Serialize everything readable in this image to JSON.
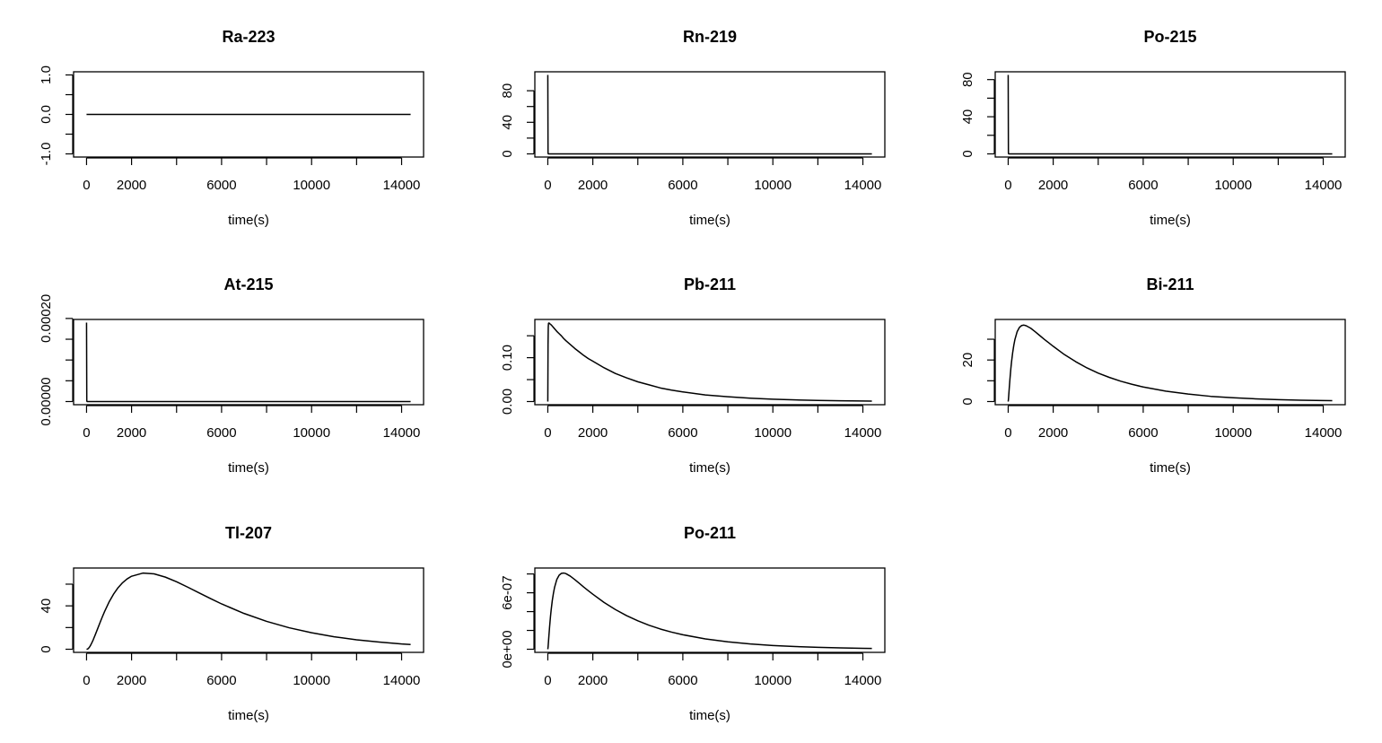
{
  "figure": {
    "x_values": [
      0,
      10,
      20,
      30,
      40,
      50,
      60,
      80,
      100,
      120,
      150,
      200,
      250,
      300,
      400,
      500,
      600,
      700,
      800,
      1000,
      1200,
      1400,
      1600,
      1800,
      2000,
      2500,
      3000,
      3500,
      4000,
      4500,
      5000,
      5500,
      6000,
      7000,
      8000,
      9000,
      10000,
      11000,
      12000,
      13000,
      14000,
      14400
    ],
    "ink_color": "#000000",
    "background_color": "#ffffff"
  },
  "chart_data": [
    {
      "type": "line",
      "title": "Ra-223",
      "xlabel": "time(s)",
      "ylabel": "",
      "xlim": [
        0,
        14400
      ],
      "ylim": [
        -1,
        1
      ],
      "x_ticks": [
        0,
        2000,
        4000,
        6000,
        8000,
        10000,
        12000,
        14000
      ],
      "x_tick_labels": [
        "0",
        "2000",
        "",
        "6000",
        "",
        "10000",
        "",
        "14000"
      ],
      "y_ticks": [
        -1.0,
        -0.5,
        0.0,
        0.5,
        1.0
      ],
      "y_tick_labels": [
        "-1.0",
        "",
        "0.0",
        "",
        "1.0"
      ],
      "grid": false,
      "series": [
        {
          "values": [
            0,
            0,
            0,
            0,
            0,
            0,
            0,
            0,
            0,
            0,
            0,
            0,
            0,
            0,
            0,
            0,
            0,
            0,
            0,
            0,
            0,
            0,
            0,
            0,
            0,
            0,
            0,
            0,
            0,
            0,
            0,
            0,
            0,
            0,
            0,
            0,
            0,
            0,
            0,
            0,
            0,
            0
          ]
        }
      ]
    },
    {
      "type": "line",
      "title": "Rn-219",
      "xlabel": "time(s)",
      "ylabel": "",
      "xlim": [
        0,
        14400
      ],
      "ylim": [
        0,
        100
      ],
      "x_ticks": [
        0,
        2000,
        4000,
        6000,
        8000,
        10000,
        12000,
        14000
      ],
      "x_tick_labels": [
        "0",
        "2000",
        "",
        "6000",
        "",
        "10000",
        "",
        "14000"
      ],
      "y_ticks": [
        0,
        20,
        40,
        60,
        80
      ],
      "y_tick_labels": [
        "0",
        "",
        "40",
        "",
        "80"
      ],
      "grid": false,
      "series": [
        {
          "values": [
            100,
            1,
            0,
            0,
            0,
            0,
            0,
            0,
            0,
            0,
            0,
            0,
            0,
            0,
            0,
            0,
            0,
            0,
            0,
            0,
            0,
            0,
            0,
            0,
            0,
            0,
            0,
            0,
            0,
            0,
            0,
            0,
            0,
            0,
            0,
            0,
            0,
            0,
            0,
            0,
            0,
            0
          ]
        }
      ]
    },
    {
      "type": "line",
      "title": "Po-215",
      "xlabel": "time(s)",
      "ylabel": "",
      "xlim": [
        0,
        14400
      ],
      "ylim": [
        0,
        85
      ],
      "x_ticks": [
        0,
        2000,
        4000,
        6000,
        8000,
        10000,
        12000,
        14000
      ],
      "x_tick_labels": [
        "0",
        "2000",
        "",
        "6000",
        "",
        "10000",
        "",
        "14000"
      ],
      "y_ticks": [
        0,
        20,
        40,
        60,
        80
      ],
      "y_tick_labels": [
        "0",
        "",
        "40",
        "",
        "80"
      ],
      "grid": false,
      "series": [
        {
          "values": [
            85,
            1,
            0,
            0,
            0,
            0,
            0,
            0,
            0,
            0,
            0,
            0,
            0,
            0,
            0,
            0,
            0,
            0,
            0,
            0,
            0,
            0,
            0,
            0,
            0,
            0,
            0,
            0,
            0,
            0,
            0,
            0,
            0,
            0,
            0,
            0,
            0,
            0,
            0,
            0,
            0,
            0
          ]
        }
      ]
    },
    {
      "type": "line",
      "title": "At-215",
      "xlabel": "time(s)",
      "ylabel": "",
      "xlim": [
        0,
        14400
      ],
      "ylim": [
        0,
        0.00019
      ],
      "x_ticks": [
        0,
        2000,
        4000,
        6000,
        8000,
        10000,
        12000,
        14000
      ],
      "x_tick_labels": [
        "0",
        "2000",
        "",
        "6000",
        "",
        "10000",
        "",
        "14000"
      ],
      "y_ticks": [
        0,
        5e-05,
        0.0001,
        0.00015,
        0.0002
      ],
      "y_tick_labels": [
        "0.00000",
        "",
        "",
        "",
        "0.00020"
      ],
      "grid": false,
      "series": [
        {
          "values": [
            0.00019,
            2e-06,
            0,
            0,
            0,
            0,
            0,
            0,
            0,
            0,
            0,
            0,
            0,
            0,
            0,
            0,
            0,
            0,
            0,
            0,
            0,
            0,
            0,
            0,
            0,
            0,
            0,
            0,
            0,
            0,
            0,
            0,
            0,
            0,
            0,
            0,
            0,
            0,
            0,
            0,
            0,
            0
          ]
        }
      ]
    },
    {
      "type": "line",
      "title": "Pb-211",
      "xlabel": "time(s)",
      "ylabel": "",
      "xlim": [
        0,
        14400
      ],
      "ylim": [
        0,
        0.18
      ],
      "x_ticks": [
        0,
        2000,
        4000,
        6000,
        8000,
        10000,
        12000,
        14000
      ],
      "x_tick_labels": [
        "0",
        "2000",
        "",
        "6000",
        "",
        "10000",
        "",
        "14000"
      ],
      "y_ticks": [
        0,
        0.05,
        0.1,
        0.15
      ],
      "y_tick_labels": [
        "0.00",
        "",
        "0.10",
        ""
      ],
      "grid": false,
      "series": [
        {
          "values": [
            0,
            0.13,
            0.17,
            0.178,
            0.179,
            0.179,
            0.179,
            0.178,
            0.177,
            0.176,
            0.175,
            0.172,
            0.169,
            0.166,
            0.16,
            0.155,
            0.15,
            0.144,
            0.139,
            0.13,
            0.121,
            0.113,
            0.105,
            0.098,
            0.092,
            0.077,
            0.064,
            0.054,
            0.045,
            0.038,
            0.031,
            0.026,
            0.022,
            0.015,
            0.011,
            0.0076,
            0.0053,
            0.0037,
            0.0026,
            0.0018,
            0.0012,
            0.0011
          ]
        }
      ]
    },
    {
      "type": "line",
      "title": "Bi-211",
      "xlabel": "time(s)",
      "ylabel": "",
      "xlim": [
        0,
        14400
      ],
      "ylim": [
        0,
        38
      ],
      "x_ticks": [
        0,
        2000,
        4000,
        6000,
        8000,
        10000,
        12000,
        14000
      ],
      "x_tick_labels": [
        "0",
        "2000",
        "",
        "6000",
        "",
        "10000",
        "",
        "14000"
      ],
      "y_ticks": [
        0,
        10,
        20,
        30
      ],
      "y_tick_labels": [
        "0",
        "",
        "20",
        ""
      ],
      "grid": false,
      "series": [
        {
          "values": [
            0,
            0.9,
            2.3,
            3.8,
            5.3,
            6.8,
            8.2,
            11,
            13.5,
            16,
            19.2,
            23.6,
            27.1,
            29.9,
            33.7,
            35.7,
            36.6,
            36.8,
            36.5,
            35.3,
            33.6,
            31.8,
            30,
            28.3,
            26.6,
            22.6,
            19.2,
            16.2,
            13.7,
            11.6,
            9.8,
            8.3,
            7,
            5,
            3.6,
            2.5,
            1.8,
            1.3,
            0.92,
            0.65,
            0.47,
            0.41
          ]
        }
      ]
    },
    {
      "type": "line",
      "title": "Tl-207",
      "xlabel": "time(s)",
      "ylabel": "",
      "xlim": [
        0,
        14400
      ],
      "ylim": [
        0,
        72
      ],
      "x_ticks": [
        0,
        2000,
        4000,
        6000,
        8000,
        10000,
        12000,
        14000
      ],
      "x_tick_labels": [
        "0",
        "2000",
        "",
        "6000",
        "",
        "10000",
        "",
        "14000"
      ],
      "y_ticks": [
        0,
        20,
        40,
        60
      ],
      "y_tick_labels": [
        "0",
        "",
        "40",
        ""
      ],
      "grid": false,
      "series": [
        {
          "values": [
            0,
            0,
            0.05,
            0.1,
            0.2,
            0.3,
            0.4,
            0.8,
            1.2,
            1.7,
            2.6,
            4.5,
            6.6,
            8.9,
            14,
            19.3,
            24.6,
            29.8,
            34.7,
            43.5,
            50.8,
            56.7,
            61.3,
            64.8,
            67.3,
            70.2,
            69.5,
            66.5,
            62.2,
            57.2,
            52,
            46.8,
            41.8,
            33,
            25.7,
            19.8,
            15.2,
            11.5,
            8.7,
            6.6,
            4.9,
            4.4
          ]
        }
      ]
    },
    {
      "type": "line",
      "title": "Po-211",
      "xlabel": "time(s)",
      "ylabel": "",
      "xlim": [
        0,
        14400
      ],
      "ylim": [
        0,
        8.3e-07
      ],
      "x_ticks": [
        0,
        2000,
        4000,
        6000,
        8000,
        10000,
        12000,
        14000
      ],
      "x_tick_labels": [
        "0",
        "2000",
        "",
        "6000",
        "",
        "10000",
        "",
        "14000"
      ],
      "y_ticks": [
        0,
        2e-07,
        4e-07,
        6e-07,
        8e-07
      ],
      "y_tick_labels": [
        "0e+00",
        "",
        "",
        "6e-07",
        ""
      ],
      "grid": false,
      "series": [
        {
          "values": [
            0,
            2e-08,
            5e-08,
            8.2e-08,
            1.15e-07,
            1.48e-07,
            1.79e-07,
            2.41e-07,
            2.96e-07,
            3.5e-07,
            4.2e-07,
            5.2e-07,
            5.95e-07,
            6.58e-07,
            7.42e-07,
            7.86e-07,
            8.06e-07,
            8.1e-07,
            8.04e-07,
            7.77e-07,
            7.4e-07,
            7e-07,
            6.6e-07,
            6.22e-07,
            5.85e-07,
            4.97e-07,
            4.22e-07,
            3.57e-07,
            3.02e-07,
            2.55e-07,
            2.15e-07,
            1.82e-07,
            1.54e-07,
            1.1e-07,
            7.9e-08,
            5.6e-08,
            4e-08,
            2.9e-08,
            2e-08,
            1.4e-08,
            1e-08,
            9e-09
          ]
        }
      ]
    }
  ]
}
